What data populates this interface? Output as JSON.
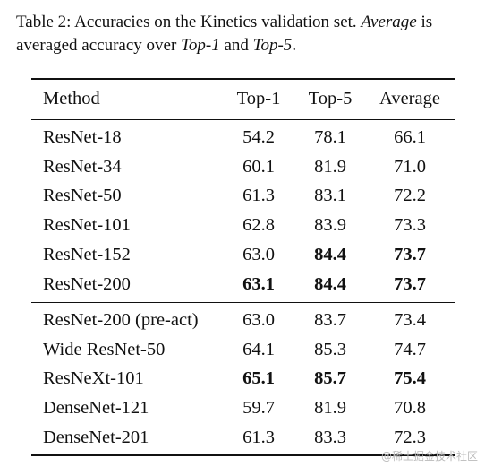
{
  "caption": {
    "parts": [
      "Table 2:  Accuracies on the Kinetics validation set. ",
      "Average",
      " is averaged accuracy over ",
      "Top-1",
      " and ",
      "Top-5",
      "."
    ]
  },
  "table": {
    "header": [
      "Method",
      "Top-1",
      "Top-5",
      "Average"
    ],
    "groups": [
      [
        {
          "method": "ResNet-18",
          "values": [
            "54.2",
            "78.1",
            "66.1"
          ],
          "bold": [
            false,
            false,
            false
          ]
        },
        {
          "method": "ResNet-34",
          "values": [
            "60.1",
            "81.9",
            "71.0"
          ],
          "bold": [
            false,
            false,
            false
          ]
        },
        {
          "method": "ResNet-50",
          "values": [
            "61.3",
            "83.1",
            "72.2"
          ],
          "bold": [
            false,
            false,
            false
          ]
        },
        {
          "method": "ResNet-101",
          "values": [
            "62.8",
            "83.9",
            "73.3"
          ],
          "bold": [
            false,
            false,
            false
          ]
        },
        {
          "method": "ResNet-152",
          "values": [
            "63.0",
            "84.4",
            "73.7"
          ],
          "bold": [
            false,
            true,
            true
          ]
        },
        {
          "method": "ResNet-200",
          "values": [
            "63.1",
            "84.4",
            "73.7"
          ],
          "bold": [
            true,
            true,
            true
          ]
        }
      ],
      [
        {
          "method": "ResNet-200 (pre-act)",
          "values": [
            "63.0",
            "83.7",
            "73.4"
          ],
          "bold": [
            false,
            false,
            false
          ]
        },
        {
          "method": "Wide ResNet-50",
          "values": [
            "64.1",
            "85.3",
            "74.7"
          ],
          "bold": [
            false,
            false,
            false
          ]
        },
        {
          "method": "ResNeXt-101",
          "values": [
            "65.1",
            "85.7",
            "75.4"
          ],
          "bold": [
            true,
            true,
            true
          ]
        },
        {
          "method": "DenseNet-121",
          "values": [
            "59.7",
            "81.9",
            "70.8"
          ],
          "bold": [
            false,
            false,
            false
          ]
        },
        {
          "method": "DenseNet-201",
          "values": [
            "61.3",
            "83.3",
            "72.3"
          ],
          "bold": [
            false,
            false,
            false
          ]
        }
      ]
    ]
  },
  "watermark": "@稀土掘金技术社区"
}
